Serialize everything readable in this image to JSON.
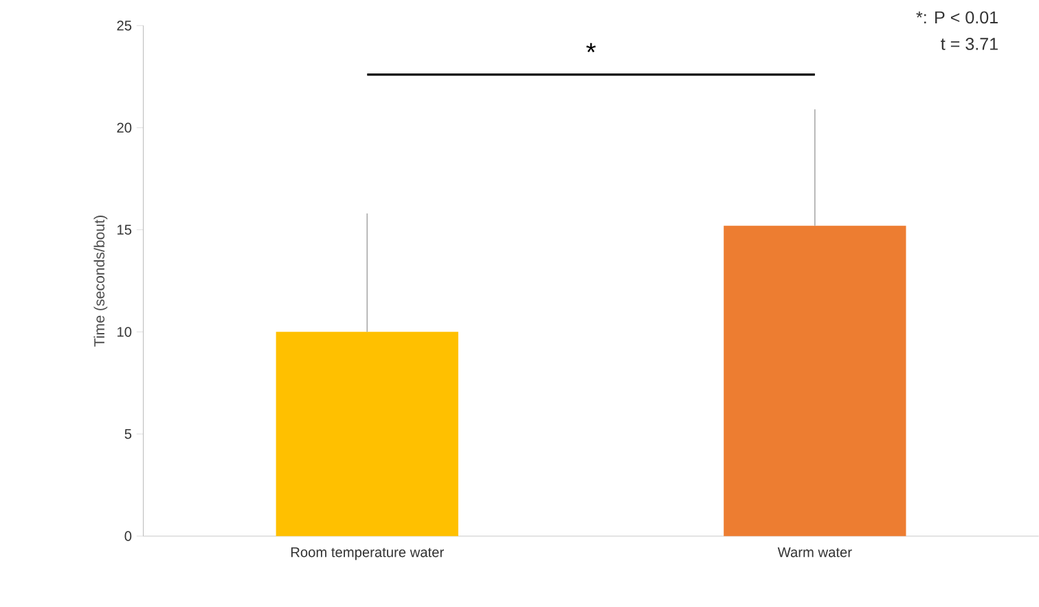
{
  "chart_data": {
    "type": "bar",
    "ylabel": "Time (seconds/bout)",
    "categories": [
      "Room temperature water",
      "Warm water"
    ],
    "values": [
      10.0,
      15.2
    ],
    "colors": [
      "#ffc000",
      "#ed7d31"
    ],
    "errors": [
      [
        10.0,
        15.8
      ],
      [
        15.2,
        20.9
      ]
    ],
    "ylim": [
      0,
      25
    ],
    "yticks": [
      0,
      5,
      10,
      15,
      20,
      25
    ],
    "grid": false,
    "annotations": [
      "*",
      "*: P < 0.01",
      "t = 3.71"
    ]
  }
}
